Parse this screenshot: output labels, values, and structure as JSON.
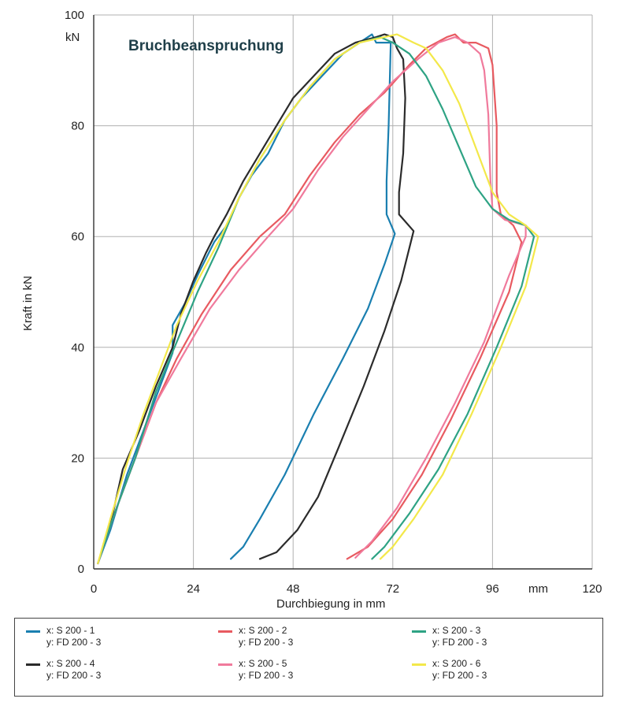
{
  "chart_data": {
    "type": "line",
    "title": "Bruchbeanspruchung",
    "xlabel": "Durchbiegung in mm",
    "ylabel": "Kraft in kN",
    "x_unit": "mm",
    "y_unit": "kN",
    "xlim": [
      0,
      120
    ],
    "ylim": [
      0,
      100
    ],
    "x_ticks": [
      "0",
      "24",
      "48",
      "72",
      "96",
      "120"
    ],
    "y_ticks": [
      "0",
      "20",
      "40",
      "60",
      "80",
      "100"
    ],
    "grid": true,
    "legend_position": "bottom",
    "series": [
      {
        "name": "x: S 200 - 1",
        "name2": "y: FD 200 - 3",
        "color": "#1a7fb0",
        "points": [
          [
            1,
            1
          ],
          [
            4,
            7
          ],
          [
            8,
            17
          ],
          [
            12,
            25
          ],
          [
            16,
            33
          ],
          [
            19,
            39
          ],
          [
            19,
            44
          ],
          [
            22,
            48
          ],
          [
            25,
            53
          ],
          [
            29,
            59
          ],
          [
            32,
            62
          ],
          [
            35,
            67
          ],
          [
            38,
            71
          ],
          [
            42,
            75
          ],
          [
            46,
            81
          ],
          [
            50,
            85
          ],
          [
            55,
            89
          ],
          [
            60,
            93
          ],
          [
            64,
            95
          ],
          [
            67,
            96.5
          ],
          [
            68,
            95
          ],
          [
            70,
            95
          ],
          [
            71.5,
            95
          ],
          [
            71,
            80
          ],
          [
            70.5,
            70
          ],
          [
            70.5,
            64
          ],
          [
            72.5,
            60.5
          ],
          [
            70,
            55
          ],
          [
            66,
            47
          ],
          [
            60,
            38
          ],
          [
            53,
            28
          ],
          [
            46,
            17
          ],
          [
            40,
            9
          ],
          [
            36,
            4
          ],
          [
            33,
            1.8
          ]
        ]
      },
      {
        "name": "x: S 200 - 4",
        "name2": "y: FD 200 - 3",
        "color": "#2b2b2b",
        "points": [
          [
            1,
            1
          ],
          [
            4,
            8
          ],
          [
            7,
            18
          ],
          [
            11,
            25
          ],
          [
            15,
            33
          ],
          [
            19,
            40
          ],
          [
            21,
            46
          ],
          [
            24,
            52
          ],
          [
            27,
            57
          ],
          [
            29,
            60
          ],
          [
            32,
            64
          ],
          [
            36,
            70
          ],
          [
            40,
            75
          ],
          [
            44,
            80
          ],
          [
            48,
            85
          ],
          [
            53,
            89
          ],
          [
            58,
            93
          ],
          [
            63,
            95
          ],
          [
            68,
            96
          ],
          [
            70,
            96.5
          ],
          [
            72,
            96
          ],
          [
            73,
            94
          ],
          [
            74.5,
            92
          ],
          [
            75,
            85
          ],
          [
            74.5,
            75
          ],
          [
            73.5,
            68
          ],
          [
            73.5,
            64
          ],
          [
            77,
            61
          ],
          [
            74,
            52
          ],
          [
            70,
            43
          ],
          [
            65,
            33
          ],
          [
            59,
            22
          ],
          [
            54,
            13
          ],
          [
            49,
            7
          ],
          [
            44,
            3
          ],
          [
            40,
            1.8
          ]
        ]
      },
      {
        "name": "x: S 200 - 2",
        "name2": "y: FD 200 - 3",
        "color": "#e85a60",
        "points": [
          [
            1,
            1
          ],
          [
            5,
            10
          ],
          [
            10,
            20
          ],
          [
            15,
            30
          ],
          [
            20,
            38
          ],
          [
            26,
            46
          ],
          [
            33,
            54
          ],
          [
            40,
            60
          ],
          [
            46,
            64
          ],
          [
            52,
            71
          ],
          [
            58,
            77
          ],
          [
            64,
            82
          ],
          [
            70,
            86
          ],
          [
            76,
            91
          ],
          [
            80,
            94
          ],
          [
            85,
            96
          ],
          [
            87,
            96.5
          ],
          [
            89,
            95
          ],
          [
            92,
            95
          ],
          [
            95,
            94
          ],
          [
            96,
            91
          ],
          [
            97,
            80
          ],
          [
            97,
            68
          ],
          [
            98,
            64
          ],
          [
            101,
            62
          ],
          [
            103,
            59
          ],
          [
            100,
            50
          ],
          [
            93,
            38
          ],
          [
            86,
            27
          ],
          [
            79,
            17
          ],
          [
            72,
            9
          ],
          [
            66,
            4
          ],
          [
            61,
            1.8
          ]
        ]
      },
      {
        "name": "x: S 200 - 5",
        "name2": "y: FD 200 - 3",
        "color": "#f07a9c",
        "points": [
          [
            1,
            1
          ],
          [
            5,
            10
          ],
          [
            10,
            20
          ],
          [
            15,
            30
          ],
          [
            21,
            38
          ],
          [
            28,
            47
          ],
          [
            35,
            54
          ],
          [
            42,
            60
          ],
          [
            48,
            65
          ],
          [
            54,
            72
          ],
          [
            60,
            78
          ],
          [
            66,
            83
          ],
          [
            72,
            88
          ],
          [
            78,
            92
          ],
          [
            83,
            95
          ],
          [
            87,
            96
          ],
          [
            90,
            95
          ],
          [
            93,
            93
          ],
          [
            94,
            90
          ],
          [
            95,
            82
          ],
          [
            95.5,
            70
          ],
          [
            96,
            65
          ],
          [
            99,
            63
          ],
          [
            104,
            62
          ],
          [
            104,
            60
          ],
          [
            100,
            53
          ],
          [
            94,
            41
          ],
          [
            87,
            30
          ],
          [
            80,
            20
          ],
          [
            73,
            11
          ],
          [
            67,
            5
          ],
          [
            63,
            2
          ]
        ]
      },
      {
        "name": "x: S 200 - 3",
        "name2": "y: FD 200 - 3",
        "color": "#2ea384",
        "points": [
          [
            1,
            1
          ],
          [
            5,
            10
          ],
          [
            10,
            20
          ],
          [
            15,
            32
          ],
          [
            20,
            41
          ],
          [
            25,
            50
          ],
          [
            30,
            58
          ],
          [
            35,
            67
          ],
          [
            40,
            74
          ],
          [
            46,
            81
          ],
          [
            52,
            87
          ],
          [
            58,
            92
          ],
          [
            64,
            95
          ],
          [
            69,
            96
          ],
          [
            72,
            95
          ],
          [
            76,
            93
          ],
          [
            80,
            89
          ],
          [
            84,
            83
          ],
          [
            88,
            76
          ],
          [
            92,
            69
          ],
          [
            96,
            65
          ],
          [
            100,
            63
          ],
          [
            104,
            62
          ],
          [
            106,
            60
          ],
          [
            103,
            51
          ],
          [
            97,
            40
          ],
          [
            90,
            28
          ],
          [
            83,
            18
          ],
          [
            76,
            10
          ],
          [
            70,
            4
          ],
          [
            67,
            1.8
          ]
        ]
      },
      {
        "name": "x: S 200 - 6",
        "name2": "y: FD 200 - 3",
        "color": "#f3e84a",
        "points": [
          [
            1,
            1
          ],
          [
            4,
            9
          ],
          [
            8,
            19
          ],
          [
            12,
            28
          ],
          [
            16,
            36
          ],
          [
            20,
            44
          ],
          [
            25,
            52
          ],
          [
            30,
            59
          ],
          [
            35,
            67
          ],
          [
            40,
            74
          ],
          [
            46,
            81
          ],
          [
            52,
            87
          ],
          [
            58,
            92
          ],
          [
            64,
            95
          ],
          [
            70,
            96
          ],
          [
            73,
            96.5
          ],
          [
            77,
            95
          ],
          [
            80,
            94
          ],
          [
            84,
            90
          ],
          [
            88,
            84
          ],
          [
            92,
            76
          ],
          [
            96,
            68
          ],
          [
            100,
            64
          ],
          [
            104,
            62
          ],
          [
            107,
            60
          ],
          [
            104,
            51
          ],
          [
            98,
            40
          ],
          [
            91,
            28
          ],
          [
            84,
            17
          ],
          [
            77,
            9
          ],
          [
            72,
            4
          ],
          [
            69,
            1.8
          ]
        ]
      }
    ]
  },
  "legend": {
    "items": [
      {
        "line1": "x: S 200 - 1",
        "line2": "y: FD 200 - 3",
        "color": "#1a7fb0"
      },
      {
        "line1": "x: S 200 - 2",
        "line2": "y: FD 200 - 3",
        "color": "#e85a60"
      },
      {
        "line1": "x: S 200 - 3",
        "line2": "y: FD 200 - 3",
        "color": "#2ea384"
      },
      {
        "line1": "x: S 200 - 4",
        "line2": "y: FD 200 - 3",
        "color": "#2b2b2b"
      },
      {
        "line1": "x: S 200 - 5",
        "line2": "y: FD 200 - 3",
        "color": "#f07a9c"
      },
      {
        "line1": "x: S 200 - 6",
        "line2": "y: FD 200 - 3",
        "color": "#f3e84a"
      }
    ]
  }
}
